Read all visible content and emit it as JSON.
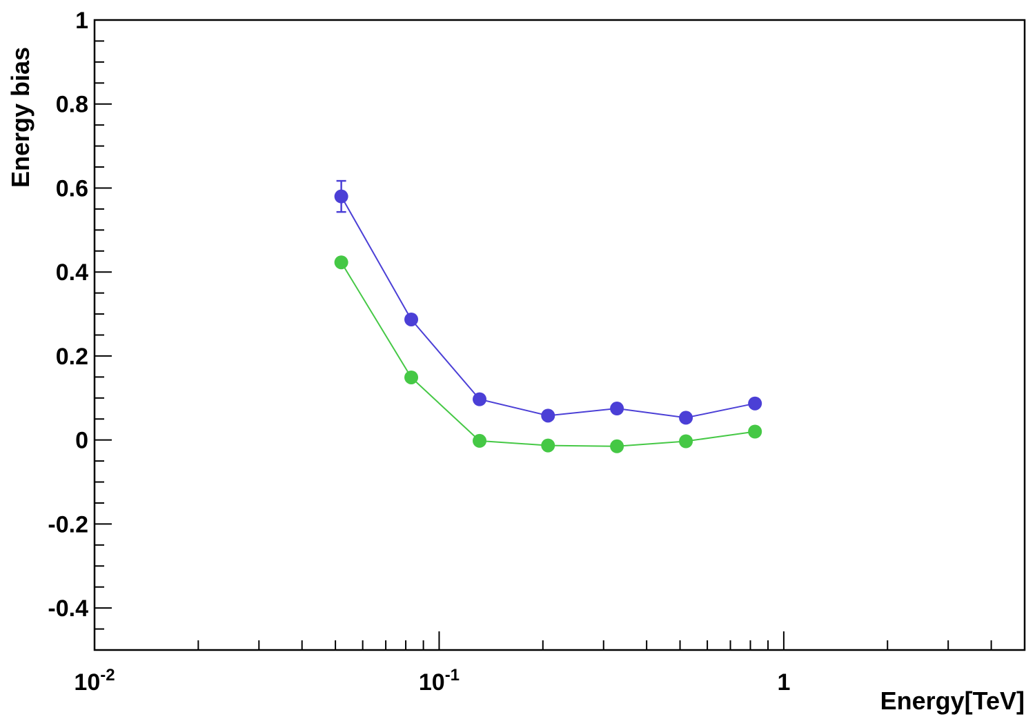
{
  "chart_data": {
    "type": "scatter",
    "title": "",
    "xlabel": "Energy[TeV]",
    "ylabel": "Energy bias",
    "xscale": "log",
    "xlim": [
      0.01,
      5.0
    ],
    "ylim": [
      -0.5,
      1.0
    ],
    "grid": false,
    "x_tick_labels": [
      {
        "value": 0.01,
        "base": "10",
        "exp": "-2"
      },
      {
        "value": 0.1,
        "base": "10",
        "exp": "-1"
      },
      {
        "value": 1,
        "base": "1",
        "exp": ""
      }
    ],
    "y_tick_labels": [
      {
        "value": -0.4,
        "label": "-0.4"
      },
      {
        "value": -0.2,
        "label": "-0.2"
      },
      {
        "value": 0,
        "label": "0"
      },
      {
        "value": 0.2,
        "label": "0.2"
      },
      {
        "value": 0.4,
        "label": "0.4"
      },
      {
        "value": 0.6,
        "label": "0.6"
      },
      {
        "value": 0.8,
        "label": "0.8"
      },
      {
        "value": 1,
        "label": "1"
      }
    ],
    "series": [
      {
        "color": "#4b3fd6",
        "x": [
          0.052,
          0.083,
          0.131,
          0.207,
          0.328,
          0.52,
          0.825
        ],
        "y": [
          0.58,
          0.287,
          0.097,
          0.058,
          0.075,
          0.053,
          0.087
        ],
        "yerr": [
          0.037,
          0.0,
          0.0,
          0.0,
          0.0,
          0.0,
          0.0
        ]
      },
      {
        "color": "#45c845",
        "x": [
          0.052,
          0.083,
          0.131,
          0.207,
          0.328,
          0.52,
          0.825
        ],
        "y": [
          0.423,
          0.149,
          -0.002,
          -0.013,
          -0.015,
          -0.003,
          0.02
        ],
        "yerr": [
          0,
          0,
          0,
          0,
          0,
          0,
          0
        ]
      }
    ]
  }
}
